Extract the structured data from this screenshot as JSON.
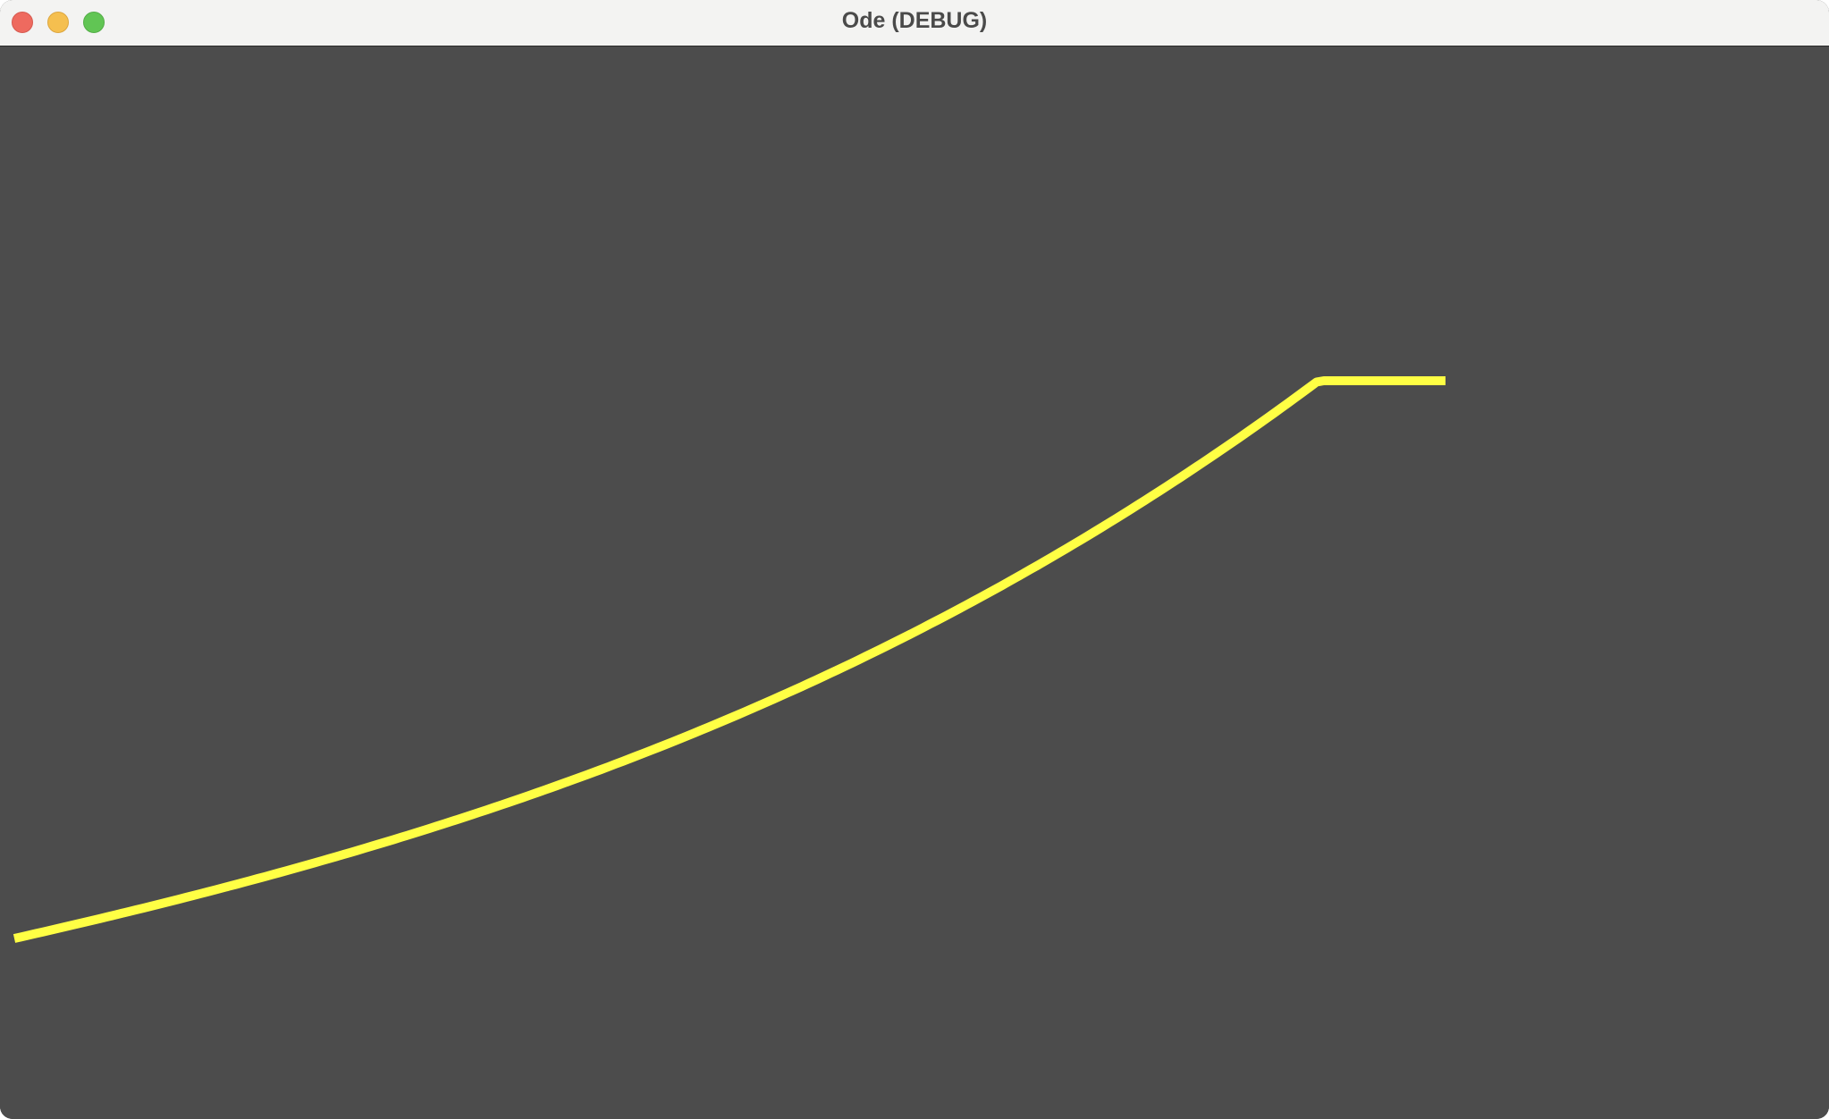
{
  "window": {
    "title": "Ode (DEBUG)"
  },
  "icons": {
    "close": "close-icon",
    "minimize": "minimize-icon",
    "maximize": "maximize-icon"
  },
  "colors": {
    "background": "#4c4c4c",
    "titlebar": "#f3f3f2",
    "curve": "#ffff44"
  }
}
